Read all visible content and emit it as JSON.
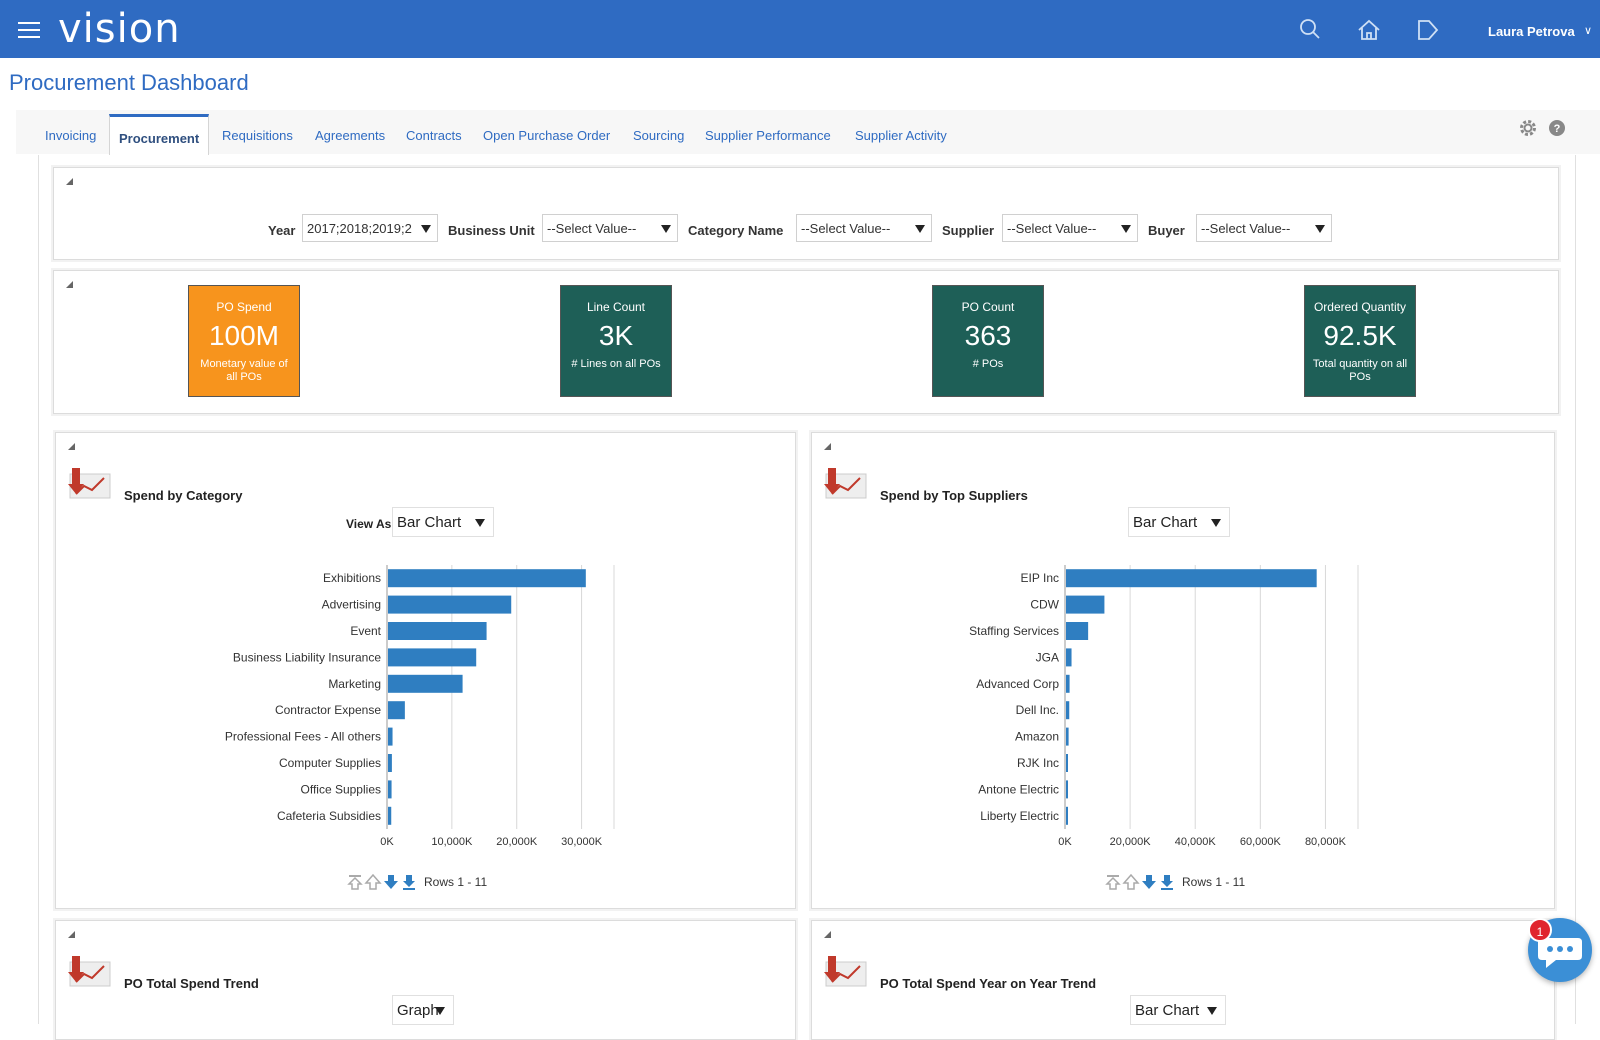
{
  "app": {
    "brand": "vision",
    "user": "Laura Petrova"
  },
  "page": {
    "title": "Procurement Dashboard"
  },
  "tabs": [
    {
      "label": "Invoicing"
    },
    {
      "label": "Procurement"
    },
    {
      "label": "Requisitions"
    },
    {
      "label": "Agreements"
    },
    {
      "label": "Contracts"
    },
    {
      "label": "Open Purchase Order"
    },
    {
      "label": "Sourcing"
    },
    {
      "label": "Supplier Performance"
    },
    {
      "label": "Supplier Activity"
    }
  ],
  "filters": {
    "year_label": "Year",
    "year_value": "2017;2018;2019;2",
    "bu_label": "Business Unit",
    "bu_value": "--Select Value--",
    "cat_label": "Category Name",
    "cat_value": "--Select Value--",
    "supplier_label": "Supplier",
    "supplier_value": "--Select Value--",
    "buyer_label": "Buyer",
    "buyer_value": "--Select Value--"
  },
  "tiles": [
    {
      "title": "PO Spend",
      "value": "100M",
      "caption": "Monetary value of all POs",
      "color": "#f7941d"
    },
    {
      "title": "Line Count",
      "value": "3K",
      "caption": "# Lines on all POs",
      "color": "#1e5f57"
    },
    {
      "title": "PO Count",
      "value": "363",
      "caption": "# POs",
      "color": "#1e5f57"
    },
    {
      "title": "Ordered Quantity",
      "value": "92.5K",
      "caption": "Total quantity on all POs",
      "color": "#1e5f57"
    }
  ],
  "spend_category": {
    "title": "Spend by Category",
    "view_as_label": "View As",
    "view_value": "Bar Chart",
    "rows_label": "Rows 1 - 11"
  },
  "spend_suppliers": {
    "title": "Spend by Top Suppliers",
    "view_value": "Bar Chart",
    "rows_label": "Rows 1 - 11"
  },
  "po_trend": {
    "title": "PO Total Spend Trend",
    "view_value": "Graph"
  },
  "po_yoy": {
    "title": "PO Total Spend Year on Year Trend",
    "view_value": "Bar Chart"
  },
  "chat": {
    "badge": "1"
  },
  "colors": {
    "brand_blue": "#2f6bc2",
    "bar": "#2f7ec1",
    "orange": "#f7941d",
    "teal": "#1e5f57"
  },
  "chart_data": [
    {
      "type": "bar",
      "orientation": "horizontal",
      "categories": [
        "Exhibitions",
        "Advertising",
        "Event",
        "Business Liability Insurance",
        "Marketing",
        "Contractor Expense",
        "Professional Fees - All others",
        "Computer Supplies",
        "Office Supplies",
        "Cafeteria Subsidies"
      ],
      "values": [
        30500,
        19000,
        15200,
        13600,
        11500,
        2600,
        700,
        600,
        550,
        500
      ],
      "xlim": [
        0,
        35000
      ],
      "xticks": [
        "0K",
        "10,000K",
        "20,000K",
        "30,000K"
      ],
      "xtick_values": [
        0,
        10000,
        20000,
        30000
      ],
      "grid": true
    },
    {
      "type": "bar",
      "orientation": "horizontal",
      "categories": [
        "EIP Inc",
        "CDW",
        "Staffing Services",
        "JGA",
        "Advanced Corp",
        "Dell Inc.",
        "Amazon",
        "RJK Inc",
        "Antone Electric",
        "Liberty Electric"
      ],
      "values": [
        77000,
        11800,
        6800,
        1700,
        1100,
        1000,
        800,
        300,
        250,
        200
      ],
      "xlim": [
        0,
        90000
      ],
      "xticks": [
        "0K",
        "20,000K",
        "40,000K",
        "60,000K",
        "80,000K"
      ],
      "xtick_values": [
        0,
        20000,
        40000,
        60000,
        80000
      ],
      "grid": true
    }
  ]
}
